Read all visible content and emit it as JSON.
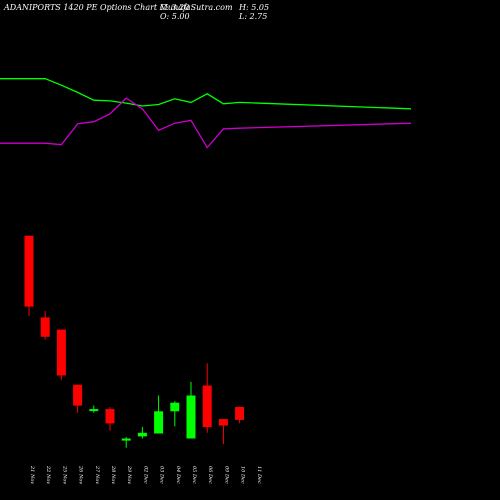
{
  "header": {
    "title": "ADANIPORTS 1420  PE Options  Chart MunafaSutra.com",
    "close": "C: 3.20",
    "high": "H: 5.05",
    "open": "O: 5.00",
    "low": "L: 2.75"
  },
  "colors": {
    "background": "#000000",
    "up": "#00ff00",
    "down": "#ff0000",
    "line_green": "#00ff00",
    "line_magenta": "#cc00cc",
    "text": "#ffffff"
  },
  "chart_data": {
    "type": "candlestick",
    "dates": [
      "21 Nov",
      "22 Nov",
      "25 Nov",
      "26 Nov",
      "27 Nov",
      "28 Nov",
      "29 Nov",
      "02 Dec",
      "03 Dec",
      "04 Dec",
      "05 Dec",
      "06 Dec",
      "09 Dec",
      "10 Dec",
      "11 Dec"
    ],
    "candles": [
      {
        "date": "21 Nov",
        "open": 28.9,
        "high": 28.9,
        "low": 17.7,
        "close": 19.0
      },
      {
        "date": "22 Nov",
        "open": 17.5,
        "high": 18.4,
        "low": 14.4,
        "close": 14.8
      },
      {
        "date": "25 Nov",
        "open": 15.8,
        "high": 15.8,
        "low": 8.8,
        "close": 9.4
      },
      {
        "date": "26 Nov",
        "open": 8.1,
        "high": 8.1,
        "low": 4.2,
        "close": 5.2
      },
      {
        "date": "27 Nov",
        "open": 4.7,
        "high": 5.2,
        "low": 4.2,
        "close": 4.7
      },
      {
        "date": "28 Nov",
        "open": 4.7,
        "high": 5.0,
        "low": 1.7,
        "close": 2.7
      },
      {
        "date": "29 Nov",
        "open": 0.3,
        "high": 0.8,
        "low": -0.7,
        "close": 0.6
      },
      {
        "date": "02 Dec",
        "open": 0.9,
        "high": 2.2,
        "low": 0.6,
        "close": 1.4
      },
      {
        "date": "03 Dec",
        "open": 1.3,
        "high": 6.6,
        "low": 1.3,
        "close": 4.4
      },
      {
        "date": "04 Dec",
        "open": 4.4,
        "high": 5.8,
        "low": 2.3,
        "close": 5.6
      },
      {
        "date": "05 Dec",
        "open": 0.6,
        "high": 8.5,
        "low": 0.6,
        "close": 6.6
      },
      {
        "date": "06 Dec",
        "open": 8.0,
        "high": 11.1,
        "low": 1.4,
        "close": 2.2
      },
      {
        "date": "09 Dec",
        "open": 3.3,
        "high": 3.3,
        "low": -0.2,
        "close": 2.4
      },
      {
        "date": "10 Dec",
        "open": 5.0,
        "high": 5.05,
        "low": 2.75,
        "close": 3.2
      }
    ],
    "line_green": [
      50.8,
      50.8,
      49.9,
      48.9,
      47.8,
      47.7,
      47.4,
      47.0,
      47.2,
      48.0,
      47.5,
      48.7,
      47.3,
      47.5,
      46.6
    ],
    "line_magenta": [
      41.8,
      41.8,
      41.6,
      44.5,
      44.8,
      45.9,
      48.1,
      46.6,
      43.6,
      44.6,
      45.0,
      41.2,
      43.8,
      43.9,
      44.6
    ],
    "ylim": [
      -2.4,
      57.6
    ],
    "grid": false,
    "legend": "none"
  }
}
